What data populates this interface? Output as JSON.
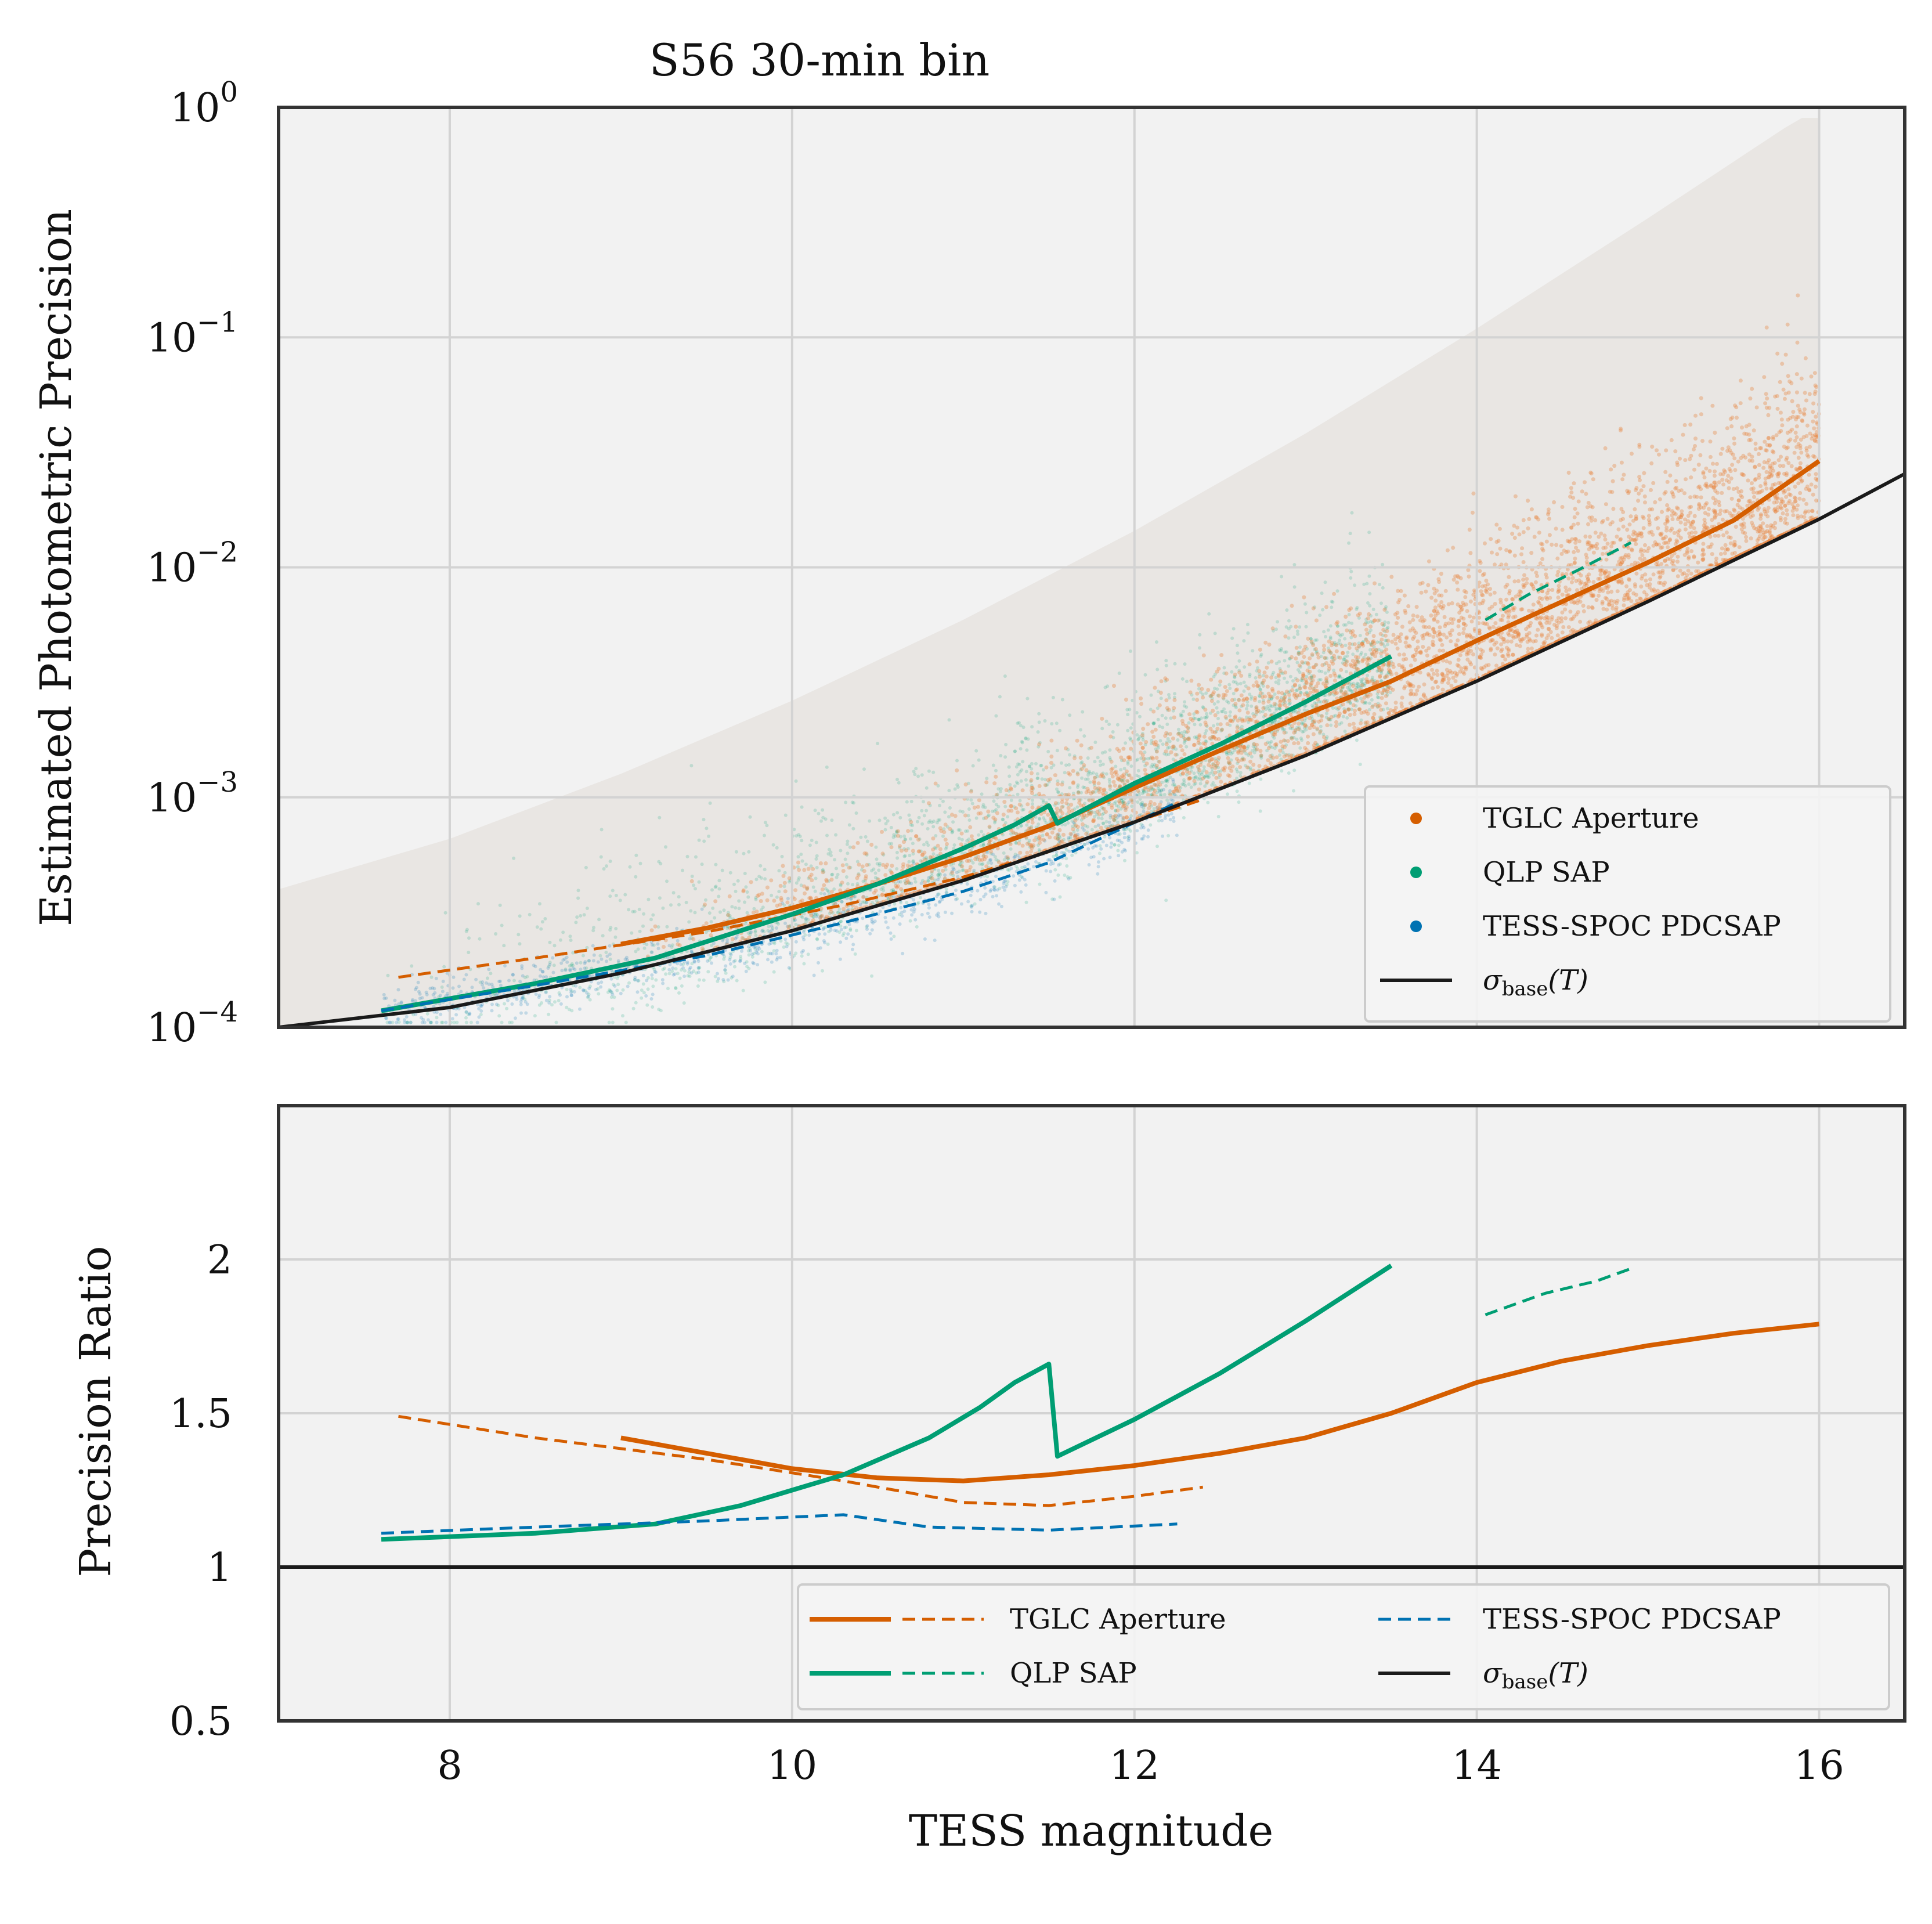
{
  "colors": {
    "tglc": "#d55e00",
    "qlp": "#009e73",
    "spoc": "#0072b2",
    "baseline": "#1a1a1a",
    "panel_bg": "#f2f2f2",
    "scatter_orange": "#e8823a"
  },
  "chart_data": [
    {
      "type": "scatter",
      "title": "S56 30-min bin",
      "xlabel": "",
      "ylabel": "Estimated Photometric Precision",
      "xlim": [
        7,
        16.5
      ],
      "ylim": [
        0.0001,
        1
      ],
      "yscale": "log",
      "grid": true,
      "legend_position": "lower-right",
      "x_ticks": [
        8,
        10,
        12,
        14,
        16
      ],
      "y_ticks": [
        {
          "value": 0.0001,
          "base": "10",
          "exp": "−4"
        },
        {
          "value": 0.001,
          "base": "10",
          "exp": "−3"
        },
        {
          "value": 0.01,
          "base": "10",
          "exp": "−2"
        },
        {
          "value": 0.1,
          "base": "10",
          "exp": "−1"
        },
        {
          "value": 1,
          "base": "10",
          "exp": "0"
        }
      ],
      "legend": [
        {
          "label": "TGLC Aperture",
          "marker": "dot",
          "color": "#d55e00"
        },
        {
          "label": "QLP SAP",
          "marker": "dot",
          "color": "#009e73"
        },
        {
          "label": "TESS-SPOC PDCSAP",
          "marker": "dot",
          "color": "#0072b2"
        },
        {
          "label": "σ",
          "sub": "base",
          "suffix": "(T)",
          "marker": "line",
          "color": "#1a1a1a"
        }
      ],
      "series": [
        {
          "name": "TGLC Aperture",
          "style": "solid",
          "color": "#d55e00",
          "x": [
            9,
            9.5,
            10,
            10.5,
            11,
            11.5,
            12,
            12.5,
            13,
            13.5,
            14,
            14.5,
            15,
            15.5,
            16
          ],
          "y": [
            0.00023,
            0.00027,
            0.00033,
            0.00042,
            0.00055,
            0.00075,
            0.0011,
            0.0016,
            0.0023,
            0.0032,
            0.0048,
            0.0071,
            0.0105,
            0.016,
            0.029
          ]
        },
        {
          "name": "TGLC Aperture",
          "style": "dashed",
          "color": "#d55e00",
          "x": [
            7.7,
            8.5,
            9.5,
            10.3,
            11,
            11.5,
            12,
            12.4
          ],
          "y": [
            0.000165,
            0.0002,
            0.00026,
            0.00034,
            0.00045,
            0.00058,
            0.00078,
            0.00098
          ]
        },
        {
          "name": "QLP SAP",
          "style": "solid",
          "color": "#009e73",
          "x": [
            7.6,
            8.5,
            9.2,
            10,
            10.5,
            11,
            11.3,
            11.5,
            11.55,
            12,
            12.5,
            13,
            13.5
          ],
          "y": [
            0.000118,
            0.000155,
            0.0002,
            0.00031,
            0.00042,
            0.0006,
            0.00076,
            0.00092,
            0.00077,
            0.00115,
            0.0017,
            0.0026,
            0.0041
          ]
        },
        {
          "name": "QLP SAP",
          "style": "dashed",
          "color": "#009e73",
          "x": [
            14.05,
            14.3,
            14.6,
            14.9
          ],
          "y": [
            0.0059,
            0.0076,
            0.0098,
            0.0128
          ]
        },
        {
          "name": "TESS-SPOC PDCSAP",
          "style": "dashed",
          "color": "#0072b2",
          "x": [
            7.6,
            8.5,
            9.5,
            10.3,
            11,
            11.5,
            12.25
          ],
          "y": [
            0.000118,
            0.000152,
            0.000205,
            0.000285,
            0.00039,
            0.00052,
            0.00095
          ]
        },
        {
          "name": "σbase(T)",
          "style": "solid",
          "color": "#1a1a1a",
          "x": [
            7,
            8,
            9,
            10,
            11,
            12,
            13,
            14,
            15,
            16,
            16.5
          ],
          "y": [
            0.0001,
            0.000122,
            0.000172,
            0.000263,
            0.000435,
            0.00078,
            0.00152,
            0.0032,
            0.0071,
            0.0162,
            0.0255
          ]
        }
      ]
    },
    {
      "type": "line",
      "title": "",
      "xlabel": "TESS magnitude",
      "ylabel": "Precision Ratio",
      "xlim": [
        7,
        16.5
      ],
      "ylim": [
        0.5,
        2.5
      ],
      "grid": true,
      "legend_position": "lower-right",
      "x_ticks": [
        8,
        10,
        12,
        14,
        16
      ],
      "y_ticks": [
        {
          "value": 0.5,
          "label": "0.5"
        },
        {
          "value": 1,
          "label": "1"
        },
        {
          "value": 1.5,
          "label": "1.5"
        },
        {
          "value": 2,
          "label": "2"
        }
      ],
      "legend": [
        {
          "label": "TGLC Aperture",
          "marker": "solid+dashed",
          "color": "#d55e00"
        },
        {
          "label": "QLP SAP",
          "marker": "solid+dashed",
          "color": "#009e73"
        },
        {
          "label": "TESS-SPOC PDCSAP",
          "marker": "dashed",
          "color": "#0072b2"
        },
        {
          "label": "σ",
          "sub": "base",
          "suffix": "(T)",
          "marker": "line",
          "color": "#1a1a1a"
        }
      ],
      "series": [
        {
          "name": "TGLC Aperture",
          "style": "solid",
          "color": "#d55e00",
          "x": [
            9,
            9.5,
            10,
            10.5,
            11,
            11.5,
            12,
            12.5,
            13,
            13.5,
            14,
            14.5,
            15,
            15.5,
            16
          ],
          "y": [
            1.42,
            1.37,
            1.32,
            1.29,
            1.28,
            1.3,
            1.33,
            1.37,
            1.42,
            1.5,
            1.6,
            1.67,
            1.72,
            1.76,
            1.79
          ]
        },
        {
          "name": "TGLC Aperture",
          "style": "dashed",
          "color": "#d55e00",
          "x": [
            7.7,
            8.5,
            9.5,
            10.3,
            11,
            11.5,
            12,
            12.4
          ],
          "y": [
            1.49,
            1.42,
            1.35,
            1.28,
            1.21,
            1.2,
            1.23,
            1.26
          ]
        },
        {
          "name": "QLP SAP",
          "style": "solid",
          "color": "#009e73",
          "x": [
            7.6,
            8.5,
            9.2,
            9.7,
            10.3,
            10.8,
            11.1,
            11.3,
            11.5,
            11.55,
            12,
            12.5,
            13,
            13.5
          ],
          "y": [
            1.09,
            1.11,
            1.14,
            1.2,
            1.3,
            1.42,
            1.52,
            1.6,
            1.66,
            1.36,
            1.48,
            1.63,
            1.8,
            1.98
          ]
        },
        {
          "name": "QLP SAP",
          "style": "dashed",
          "color": "#009e73",
          "x": [
            14.05,
            14.4,
            14.7,
            14.9
          ],
          "y": [
            1.82,
            1.89,
            1.93,
            1.97
          ]
        },
        {
          "name": "TESS-SPOC PDCSAP",
          "style": "dashed",
          "color": "#0072b2",
          "x": [
            7.6,
            8.5,
            9.5,
            10.3,
            10.8,
            11.5,
            12.25
          ],
          "y": [
            1.11,
            1.13,
            1.15,
            1.17,
            1.13,
            1.12,
            1.14
          ]
        },
        {
          "name": "σbase(T)",
          "style": "solid",
          "color": "#1a1a1a",
          "x": [
            7,
            16.5
          ],
          "y": [
            1,
            1
          ]
        }
      ]
    }
  ]
}
